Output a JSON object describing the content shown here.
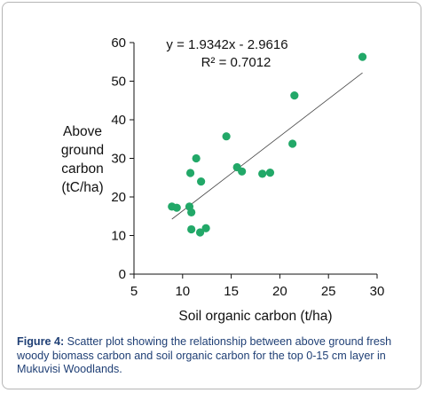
{
  "chart_data": {
    "type": "scatter",
    "xlabel": "Soil organic carbon (t/ha)",
    "ylabel_lines": [
      "Above",
      "ground",
      "carbon",
      "(tC/ha)"
    ],
    "xlim": [
      5,
      30
    ],
    "ylim": [
      0,
      60
    ],
    "xticks": [
      5,
      10,
      15,
      20,
      25,
      30
    ],
    "yticks": [
      0,
      10,
      20,
      30,
      40,
      50,
      60
    ],
    "grid": false,
    "marker_color": "#22a868",
    "trendline": {
      "slope": 1.9342,
      "intercept": -2.9616,
      "x_range": [
        8.9,
        28.5
      ]
    },
    "annotations": [
      "y = 1.9342x - 2.9616",
      "R² = 0.7012"
    ],
    "points": [
      {
        "x": 8.9,
        "y": 17.5
      },
      {
        "x": 9.4,
        "y": 17.2
      },
      {
        "x": 10.7,
        "y": 17.5
      },
      {
        "x": 10.9,
        "y": 16.0
      },
      {
        "x": 10.9,
        "y": 11.6
      },
      {
        "x": 11.8,
        "y": 10.8
      },
      {
        "x": 12.4,
        "y": 11.9
      },
      {
        "x": 10.8,
        "y": 26.2
      },
      {
        "x": 11.4,
        "y": 30.0
      },
      {
        "x": 11.9,
        "y": 24.0
      },
      {
        "x": 14.5,
        "y": 35.7
      },
      {
        "x": 15.6,
        "y": 27.7
      },
      {
        "x": 16.1,
        "y": 26.6
      },
      {
        "x": 18.2,
        "y": 26.0
      },
      {
        "x": 19.0,
        "y": 26.3
      },
      {
        "x": 21.3,
        "y": 33.8
      },
      {
        "x": 21.5,
        "y": 46.3
      },
      {
        "x": 28.5,
        "y": 56.3
      }
    ]
  },
  "caption": {
    "label": "Figure 4:",
    "text": " Scatter plot showing the relationship between above ground fresh woody biomass carbon and soil organic carbon for the top 0-15 cm layer in Mukuvisi Woodlands."
  }
}
